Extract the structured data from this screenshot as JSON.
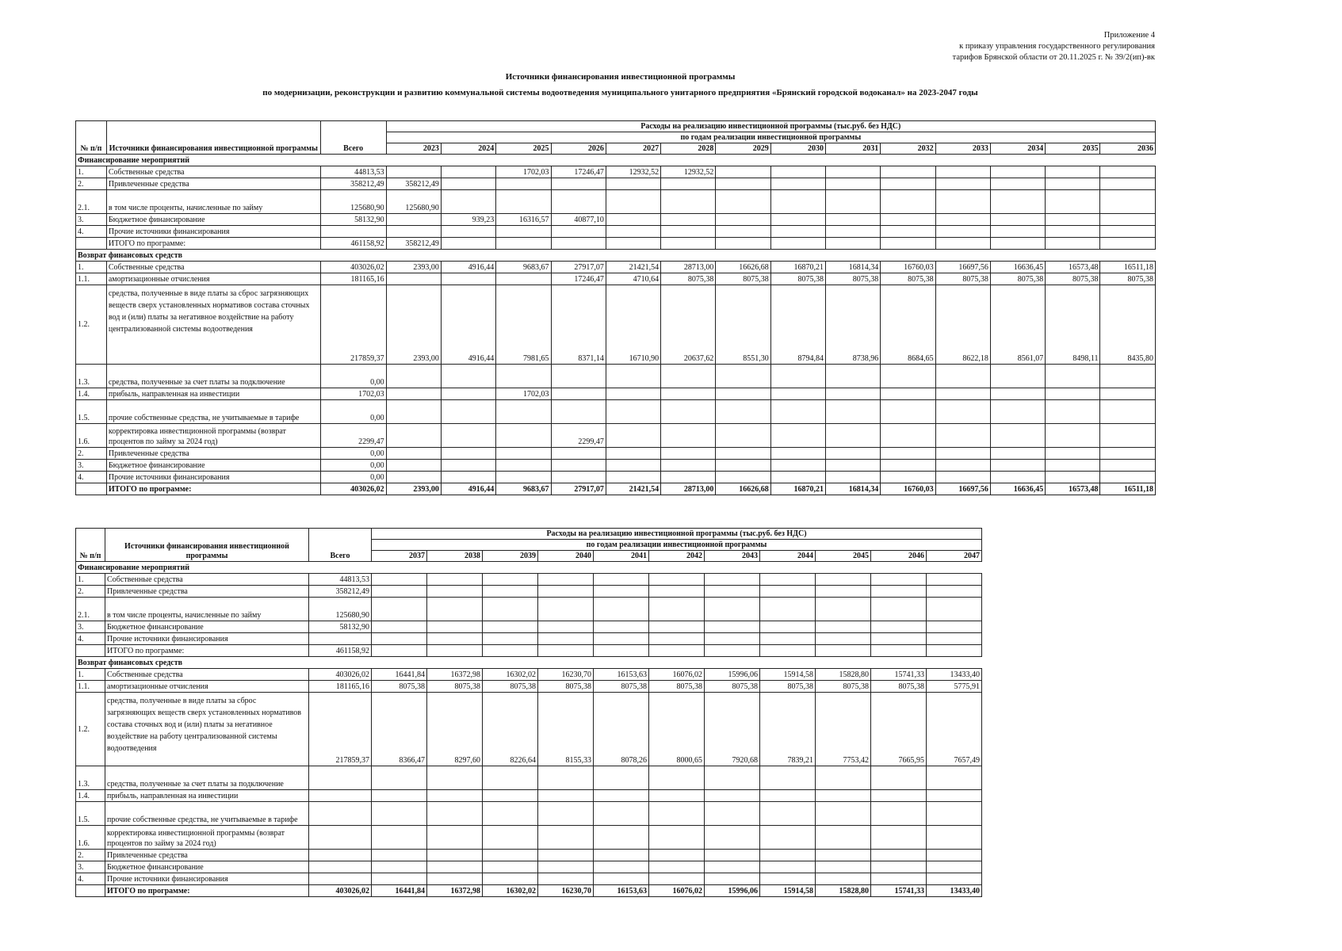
{
  "appendix": {
    "line1": "Приложение 4",
    "line2": "к приказу управления государственного регулирования",
    "line3": "тарифов Брянской области от 20.11.2025 г. № 39/2(ип)-вк"
  },
  "title": {
    "line1": "Источники финансирования инвестиционной программы",
    "line2": "по модернизации, реконструкции и развитию коммунальной системы водоотведения муниципального унитарного предприятия «Брянский городской водоканал» на 2023-2047 годы"
  },
  "header": {
    "num": "№ п/п",
    "source": "Источники финансирования инвестиционной программы",
    "total": "Всего",
    "expenses": "Расходы на реализацию инвестиционной программы (тыс.руб. без НДС)",
    "by_years": "по годам реализации инвестиционной программы"
  },
  "tables": [
    {
      "years": [
        "2023",
        "2024",
        "2025",
        "2026",
        "2027",
        "2028",
        "2029",
        "2030",
        "2031",
        "2032",
        "2033",
        "2034",
        "2035",
        "2036"
      ],
      "rows": [
        {
          "type": "section",
          "label": "Финансирование мероприятий"
        },
        {
          "no": "1.",
          "name": "Собственные средства",
          "total": "44813,53",
          "values": [
            "",
            "",
            "1702,03",
            "17246,47",
            "12932,52",
            "12932,52"
          ]
        },
        {
          "no": "2.",
          "name": "Привлеченные средства",
          "total": "358212,49",
          "values": [
            "358212,49"
          ]
        },
        {
          "no": "2.1.",
          "name": "в том числе проценты, начисленные по займу",
          "total": "125680,90",
          "values": [
            "125680,90"
          ],
          "h": "tall"
        },
        {
          "no": "3.",
          "name": "Бюджетное финансирование",
          "total": "58132,90",
          "values": [
            "",
            "939,23",
            "16316,57",
            "40877,10"
          ]
        },
        {
          "no": "4.",
          "name": "Прочие источники финансирования",
          "total": "",
          "values": []
        },
        {
          "no": "",
          "name": "ИТОГО по программе:",
          "total": "461158,92",
          "values": [
            "358212,49"
          ]
        },
        {
          "type": "section",
          "label": "Возврат финансовых средств"
        },
        {
          "no": "1.",
          "name": "Собственные средства",
          "total": "403026,02",
          "values": [
            "2393,00",
            "4916,44",
            "9683,67",
            "27917,07",
            "21421,54",
            "28713,00",
            "16626,68",
            "16870,21",
            "16814,34",
            "16760,03",
            "16697,56",
            "16636,45",
            "16573,48",
            "16511,18"
          ]
        },
        {
          "no": "1.1.",
          "name": "амортизационные отчисления",
          "total": "181165,16",
          "values": [
            "",
            "",
            "",
            "17246,47",
            "4710,64",
            "8075,38",
            "8075,38",
            "8075,38",
            "8075,38",
            "8075,38",
            "8075,38",
            "8075,38",
            "8075,38",
            "8075,38"
          ]
        },
        {
          "no": "1.2.",
          "name": "средства, полученные в виде платы за сброс загрязняющих веществ сверх установленных нормативов состава сточных вод и (или) платы за негативное воздействие на работу централизованной системы водоотведения",
          "total": "217859,37",
          "values": [
            "2393,00",
            "4916,44",
            "7981,65",
            "8371,14",
            "16710,90",
            "20637,62",
            "8551,30",
            "8794,84",
            "8738,96",
            "8684,65",
            "8622,18",
            "8561,07",
            "8498,11",
            "8435,80"
          ],
          "h": "xtall"
        },
        {
          "no": "1.3.",
          "name": "средства, полученные за счет платы за подключение",
          "total": "0,00",
          "values": [],
          "h": "tall"
        },
        {
          "no": "1.4.",
          "name": "прибыль, направленная на инвестиции",
          "total": "1702,03",
          "values": [
            "",
            "",
            "1702,03"
          ]
        },
        {
          "no": "1.5.",
          "name": "прочие собственные средства, не учитываемые в тарифе",
          "total": "0,00",
          "values": [],
          "h": "tall"
        },
        {
          "no": "1.6.",
          "name": "корректировка инвестиционной программы (возврат процентов по займу за 2024 год)",
          "total": "2299,47",
          "values": [
            "",
            "",
            "",
            "2299,47"
          ],
          "h": "tall"
        },
        {
          "no": "2.",
          "name": "Привлеченные средства",
          "total": "0,00",
          "values": []
        },
        {
          "no": "3.",
          "name": "Бюджетное финансирование",
          "total": "0,00",
          "values": []
        },
        {
          "no": "4.",
          "name": "Прочие источники финансирования",
          "total": "0,00",
          "values": []
        },
        {
          "no": "",
          "name": "ИТОГО по программе:",
          "total": "403026,02",
          "values": [
            "2393,00",
            "4916,44",
            "9683,67",
            "27917,07",
            "21421,54",
            "28713,00",
            "16626,68",
            "16870,21",
            "16814,34",
            "16760,03",
            "16697,56",
            "16636,45",
            "16573,48",
            "16511,18"
          ],
          "bold": true
        }
      ]
    },
    {
      "years": [
        "2037",
        "2038",
        "2039",
        "2040",
        "2041",
        "2042",
        "2043",
        "2044",
        "2045",
        "2046",
        "2047"
      ],
      "rows": [
        {
          "type": "section",
          "label": "Финансирование мероприятий"
        },
        {
          "no": "1.",
          "name": "Собственные средства",
          "total": "44813,53",
          "values": []
        },
        {
          "no": "2.",
          "name": "Привлеченные средства",
          "total": "358212,49",
          "values": []
        },
        {
          "no": "2.1.",
          "name": "в том числе проценты, начисленные по займу",
          "total": "125680,90",
          "values": [],
          "h": "tall"
        },
        {
          "no": "3.",
          "name": "Бюджетное финансирование",
          "total": "58132,90",
          "values": []
        },
        {
          "no": "4.",
          "name": "Прочие источники финансирования",
          "total": "",
          "values": []
        },
        {
          "no": "",
          "name": "ИТОГО по программе:",
          "total": "461158,92",
          "values": []
        },
        {
          "type": "section",
          "label": "Возврат финансовых средств"
        },
        {
          "no": "1.",
          "name": "Собственные средства",
          "total": "403026,02",
          "values": [
            "16441,84",
            "16372,98",
            "16302,02",
            "16230,70",
            "16153,63",
            "16076,02",
            "15996,06",
            "15914,58",
            "15828,80",
            "15741,33",
            "13433,40"
          ]
        },
        {
          "no": "1.1.",
          "name": "амортизационные отчисления",
          "total": "181165,16",
          "values": [
            "8075,38",
            "8075,38",
            "8075,38",
            "8075,38",
            "8075,38",
            "8075,38",
            "8075,38",
            "8075,38",
            "8075,38",
            "8075,38",
            "5775,91"
          ]
        },
        {
          "no": "1.2.",
          "name": "средства, полученные в виде платы за сброс загрязняющих веществ сверх установленных нормативов состава сточных вод и (или) платы за негативное воздействие на работу централизованной системы водоотведения",
          "total": "217859,37",
          "values": [
            "8366,47",
            "8297,60",
            "8226,64",
            "8155,33",
            "8078,26",
            "8000,65",
            "7920,68",
            "7839,21",
            "7753,42",
            "7665,95",
            "7657,49"
          ],
          "h": "xtall"
        },
        {
          "no": "1.3.",
          "name": "средства, полученные за счет платы за подключение",
          "total": "",
          "values": [],
          "h": "tall"
        },
        {
          "no": "1.4.",
          "name": "прибыль, направленная на инвестиции",
          "total": "",
          "values": []
        },
        {
          "no": "1.5.",
          "name": "прочие собственные средства, не учитываемые в тарифе",
          "total": "",
          "values": [],
          "h": "tall"
        },
        {
          "no": "1.6.",
          "name": "корректировка инвестиционной программы (возврат процентов по займу за 2024 год)",
          "total": "",
          "values": [],
          "h": "tall"
        },
        {
          "no": "2.",
          "name": "Привлеченные средства",
          "total": "",
          "values": []
        },
        {
          "no": "3.",
          "name": "Бюджетное финансирование",
          "total": "",
          "values": []
        },
        {
          "no": "4.",
          "name": "Прочие источники финансирования",
          "total": "",
          "values": []
        },
        {
          "no": "",
          "name": "ИТОГО по программе:",
          "total": "403026,02",
          "values": [
            "16441,84",
            "16372,98",
            "16302,02",
            "16230,70",
            "16153,63",
            "16076,02",
            "15996,06",
            "15914,58",
            "15828,80",
            "15741,33",
            "13433,40"
          ],
          "bold": true
        }
      ]
    }
  ]
}
